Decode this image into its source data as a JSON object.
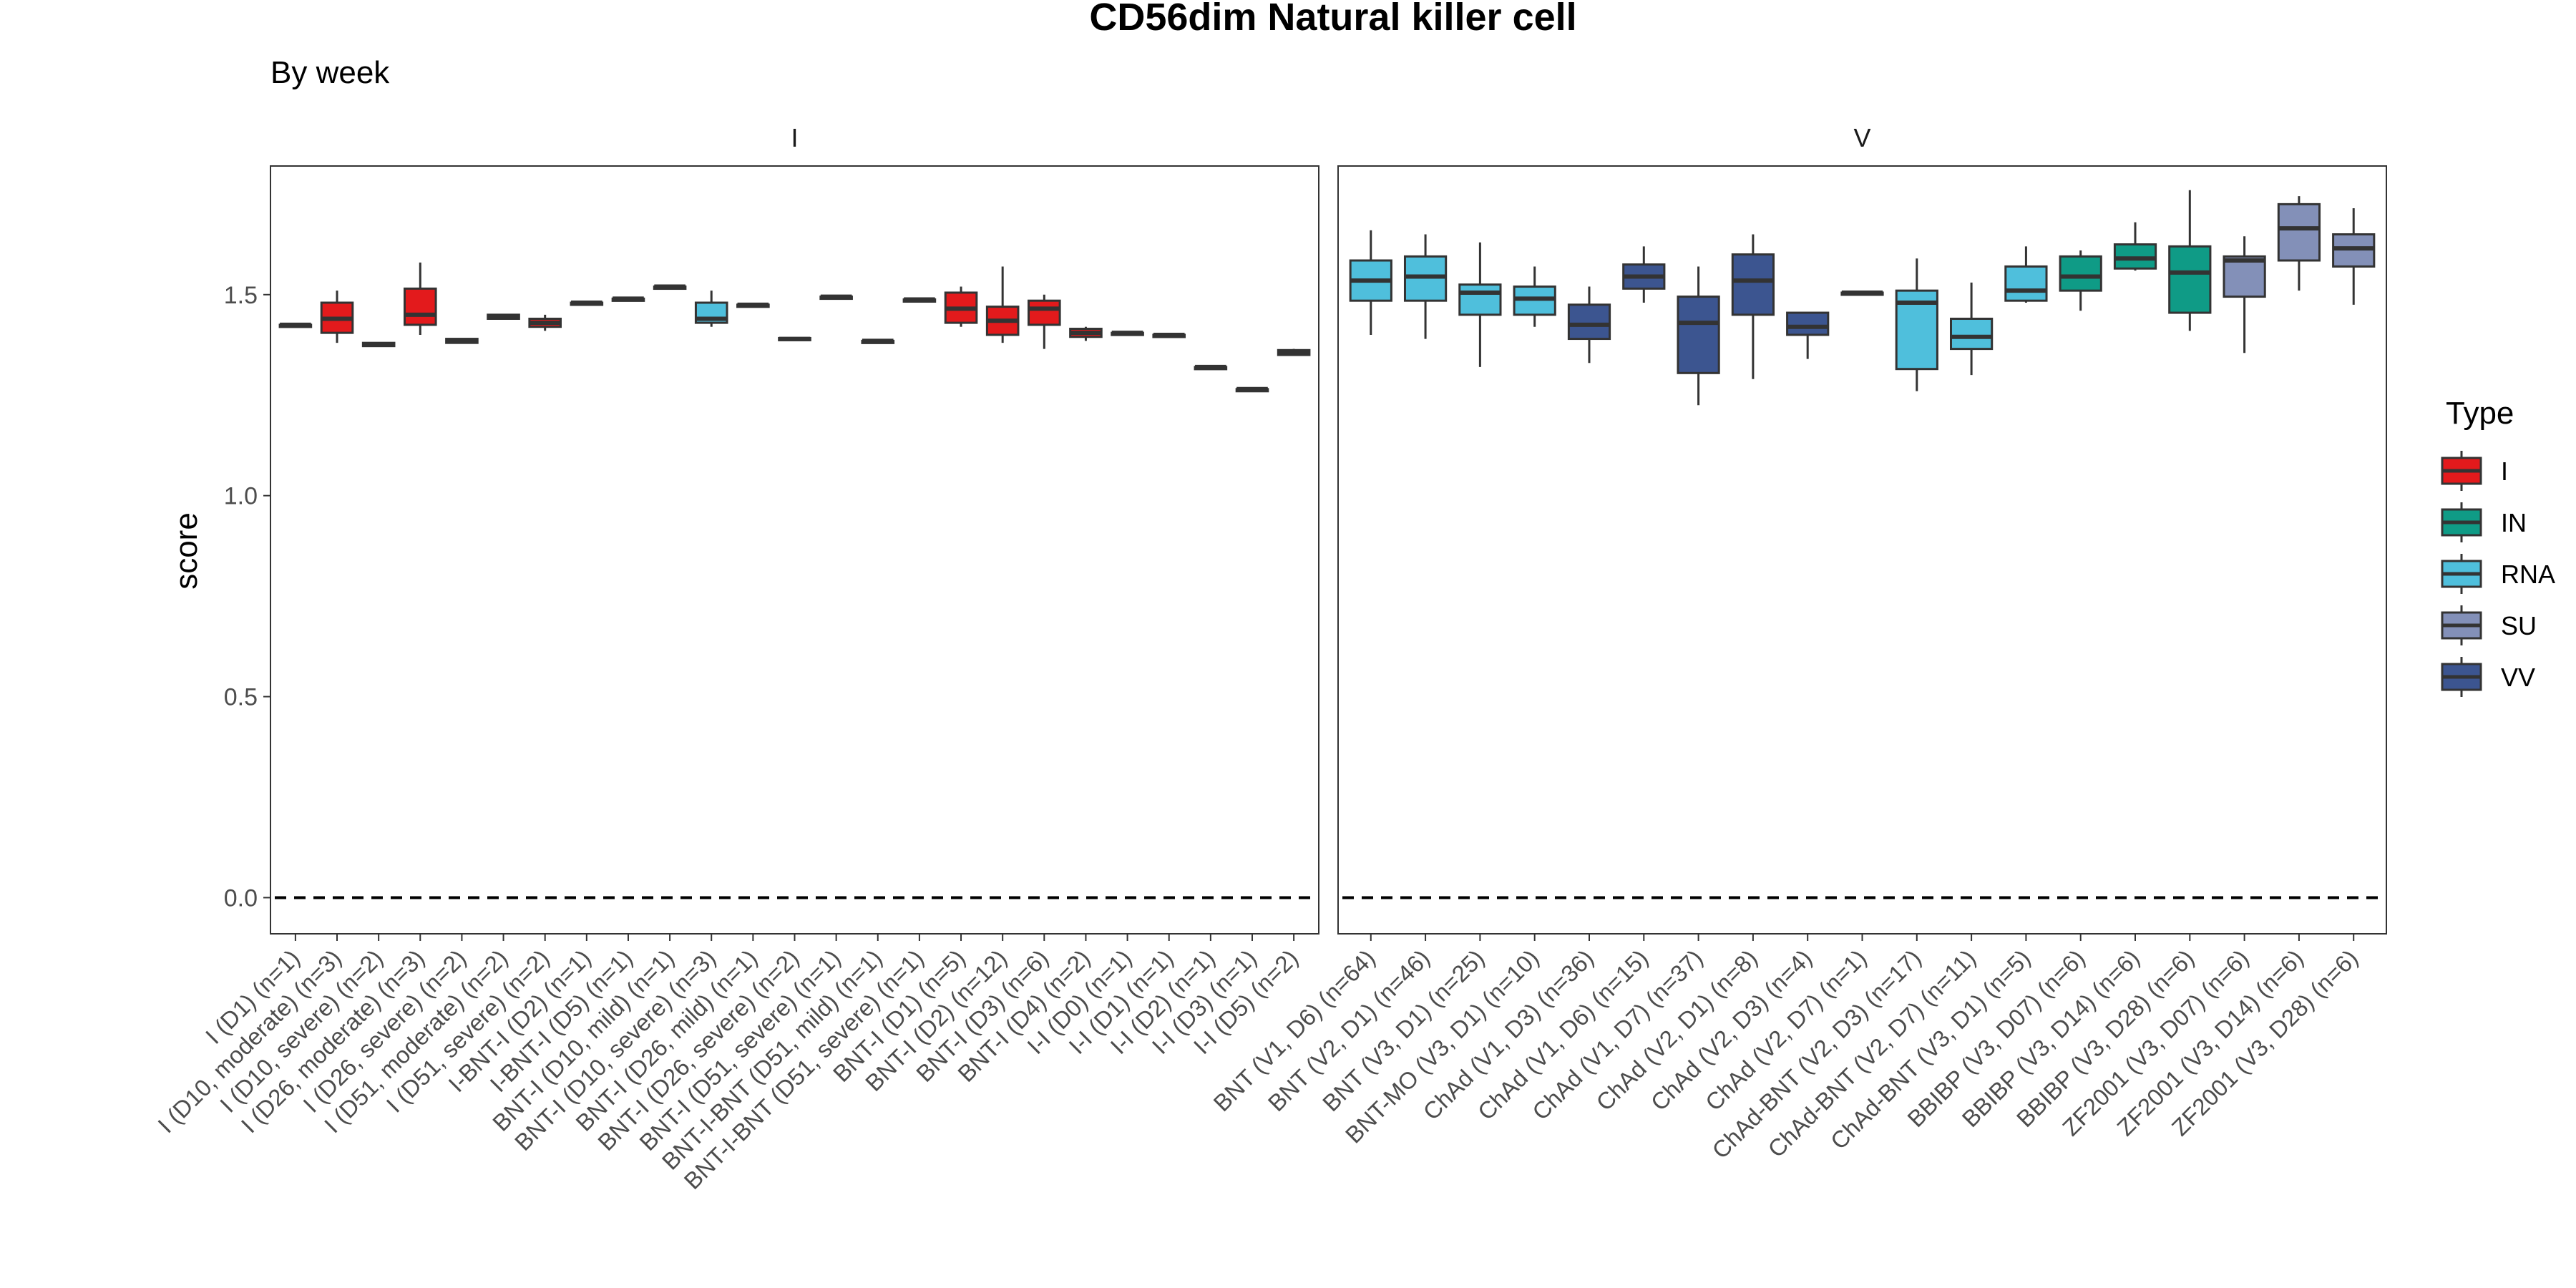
{
  "chart_data": {
    "type": "box",
    "title": "CD56dim Natural killer cell",
    "subtitle": "By week",
    "ylabel": "score",
    "xlabel": "",
    "ylim": [
      -0.09,
      1.82
    ],
    "yticks": [
      0.0,
      0.5,
      1.0,
      1.5
    ],
    "yticklabels": [
      "0.0",
      "0.5",
      "1.0",
      "1.5"
    ],
    "reference_line": 0.0,
    "legend": {
      "title": "Type",
      "position": "right",
      "items": [
        {
          "label": "I",
          "color": "#e31a1c"
        },
        {
          "label": "IN",
          "color": "#0f9b86"
        },
        {
          "label": "RNA",
          "color": "#4fbfdc"
        },
        {
          "label": "SU",
          "color": "#8390b8"
        },
        {
          "label": "VV",
          "color": "#3c5590"
        }
      ]
    },
    "colors": {
      "I": "#e31a1c",
      "IN": "#0f9b86",
      "RNA": "#4fbfdc",
      "SU": "#8390b8",
      "VV": "#3c5590"
    },
    "facets": [
      {
        "name": "I",
        "categories": [
          {
            "label": "I (D1) (n=1)",
            "type": "I",
            "q1": 1.425,
            "median": 1.425,
            "q3": 1.425,
            "min": 1.425,
            "max": 1.425
          },
          {
            "label": "I (D10, moderate) (n=3)",
            "type": "I",
            "q1": 1.405,
            "median": 1.44,
            "q3": 1.48,
            "min": 1.38,
            "max": 1.51
          },
          {
            "label": "I (D10, severe) (n=2)",
            "type": "I",
            "q1": 1.372,
            "median": 1.376,
            "q3": 1.38,
            "min": 1.372,
            "max": 1.38
          },
          {
            "label": "I (D26, moderate) (n=3)",
            "type": "I",
            "q1": 1.425,
            "median": 1.45,
            "q3": 1.515,
            "min": 1.4,
            "max": 1.58
          },
          {
            "label": "I (D26, severe) (n=2)",
            "type": "I",
            "q1": 1.38,
            "median": 1.385,
            "q3": 1.39,
            "min": 1.38,
            "max": 1.39
          },
          {
            "label": "I (D51, moderate) (n=2)",
            "type": "I",
            "q1": 1.44,
            "median": 1.445,
            "q3": 1.45,
            "min": 1.44,
            "max": 1.45
          },
          {
            "label": "I (D51, severe) (n=2)",
            "type": "I",
            "q1": 1.42,
            "median": 1.43,
            "q3": 1.44,
            "min": 1.41,
            "max": 1.45
          },
          {
            "label": "I-BNT-I (D2) (n=1)",
            "type": "I",
            "q1": 1.48,
            "median": 1.48,
            "q3": 1.48,
            "min": 1.48,
            "max": 1.48
          },
          {
            "label": "I-BNT-I (D5) (n=1)",
            "type": "I",
            "q1": 1.49,
            "median": 1.49,
            "q3": 1.49,
            "min": 1.49,
            "max": 1.49
          },
          {
            "label": "BNT-I (D10, mild) (n=1)",
            "type": "I",
            "q1": 1.52,
            "median": 1.52,
            "q3": 1.52,
            "min": 1.52,
            "max": 1.52
          },
          {
            "label": "BNT-I (D10, severe) (n=3)",
            "type": "RNA",
            "q1": 1.43,
            "median": 1.44,
            "q3": 1.48,
            "min": 1.42,
            "max": 1.51
          },
          {
            "label": "BNT-I (D26, mild) (n=1)",
            "type": "I",
            "q1": 1.475,
            "median": 1.475,
            "q3": 1.475,
            "min": 1.475,
            "max": 1.475
          },
          {
            "label": "BNT-I (D26, severe) (n=2)",
            "type": "I",
            "q1": 1.388,
            "median": 1.39,
            "q3": 1.392,
            "min": 1.388,
            "max": 1.392
          },
          {
            "label": "BNT-I (D51, severe) (n=1)",
            "type": "I",
            "q1": 1.495,
            "median": 1.495,
            "q3": 1.495,
            "min": 1.495,
            "max": 1.495
          },
          {
            "label": "BNT-I-BNT (D51, mild) (n=1)",
            "type": "I",
            "q1": 1.385,
            "median": 1.385,
            "q3": 1.385,
            "min": 1.385,
            "max": 1.385
          },
          {
            "label": "BNT-I-BNT (D51, severe) (n=1)",
            "type": "I",
            "q1": 1.488,
            "median": 1.488,
            "q3": 1.488,
            "min": 1.488,
            "max": 1.488
          },
          {
            "label": "BNT-I (D1) (n=5)",
            "type": "I",
            "q1": 1.43,
            "median": 1.465,
            "q3": 1.505,
            "min": 1.42,
            "max": 1.52
          },
          {
            "label": "BNT-I (D2) (n=12)",
            "type": "I",
            "q1": 1.4,
            "median": 1.435,
            "q3": 1.47,
            "min": 1.38,
            "max": 1.57
          },
          {
            "label": "BNT-I (D3) (n=6)",
            "type": "I",
            "q1": 1.425,
            "median": 1.465,
            "q3": 1.485,
            "min": 1.365,
            "max": 1.5
          },
          {
            "label": "BNT-I (D4) (n=2)",
            "type": "I",
            "q1": 1.395,
            "median": 1.405,
            "q3": 1.415,
            "min": 1.385,
            "max": 1.42
          },
          {
            "label": "I-I (D0) (n=1)",
            "type": "I",
            "q1": 1.405,
            "median": 1.405,
            "q3": 1.405,
            "min": 1.405,
            "max": 1.405
          },
          {
            "label": "I-I (D1) (n=1)",
            "type": "I",
            "q1": 1.4,
            "median": 1.4,
            "q3": 1.4,
            "min": 1.4,
            "max": 1.4
          },
          {
            "label": "I-I (D2) (n=1)",
            "type": "I",
            "q1": 1.32,
            "median": 1.32,
            "q3": 1.32,
            "min": 1.32,
            "max": 1.32
          },
          {
            "label": "I-I (D3) (n=1)",
            "type": "I",
            "q1": 1.265,
            "median": 1.265,
            "q3": 1.265,
            "min": 1.265,
            "max": 1.265
          },
          {
            "label": "I-I (D5) (n=2)",
            "type": "I",
            "q1": 1.35,
            "median": 1.355,
            "q3": 1.362,
            "min": 1.35,
            "max": 1.365
          }
        ]
      },
      {
        "name": "V",
        "categories": [
          {
            "label": "BNT (V1, D6) (n=64)",
            "type": "RNA",
            "q1": 1.485,
            "median": 1.535,
            "q3": 1.585,
            "min": 1.4,
            "max": 1.66
          },
          {
            "label": "BNT (V2, D1) (n=46)",
            "type": "RNA",
            "q1": 1.485,
            "median": 1.545,
            "q3": 1.595,
            "min": 1.39,
            "max": 1.65
          },
          {
            "label": "BNT (V3, D1) (n=25)",
            "type": "RNA",
            "q1": 1.45,
            "median": 1.505,
            "q3": 1.525,
            "min": 1.32,
            "max": 1.63
          },
          {
            "label": "BNT-MO (V3, D1) (n=10)",
            "type": "RNA",
            "q1": 1.45,
            "median": 1.49,
            "q3": 1.52,
            "min": 1.42,
            "max": 1.57
          },
          {
            "label": "ChAd (V1, D3) (n=36)",
            "type": "VV",
            "q1": 1.39,
            "median": 1.425,
            "q3": 1.475,
            "min": 1.33,
            "max": 1.52
          },
          {
            "label": "ChAd (V1, D6) (n=15)",
            "type": "VV",
            "q1": 1.515,
            "median": 1.545,
            "q3": 1.575,
            "min": 1.48,
            "max": 1.62
          },
          {
            "label": "ChAd (V1, D7) (n=37)",
            "type": "VV",
            "q1": 1.305,
            "median": 1.43,
            "q3": 1.495,
            "min": 1.225,
            "max": 1.57
          },
          {
            "label": "ChAd (V2, D1) (n=8)",
            "type": "VV",
            "q1": 1.45,
            "median": 1.535,
            "q3": 1.6,
            "min": 1.29,
            "max": 1.65
          },
          {
            "label": "ChAd (V2, D3) (n=4)",
            "type": "VV",
            "q1": 1.4,
            "median": 1.42,
            "q3": 1.455,
            "min": 1.34,
            "max": 1.455
          },
          {
            "label": "ChAd (V2, D7) (n=1)",
            "type": "VV",
            "q1": 1.505,
            "median": 1.505,
            "q3": 1.505,
            "min": 1.505,
            "max": 1.505
          },
          {
            "label": "ChAd-BNT (V2, D3) (n=17)",
            "type": "RNA",
            "q1": 1.315,
            "median": 1.48,
            "q3": 1.51,
            "min": 1.26,
            "max": 1.59
          },
          {
            "label": "ChAd-BNT (V2, D7) (n=11)",
            "type": "RNA",
            "q1": 1.365,
            "median": 1.395,
            "q3": 1.44,
            "min": 1.3,
            "max": 1.53
          },
          {
            "label": "ChAd-BNT (V3, D1) (n=5)",
            "type": "RNA",
            "q1": 1.485,
            "median": 1.51,
            "q3": 1.57,
            "min": 1.48,
            "max": 1.62
          },
          {
            "label": "BBIBP (V3, D07) (n=6)",
            "type": "IN",
            "q1": 1.51,
            "median": 1.545,
            "q3": 1.595,
            "min": 1.46,
            "max": 1.61
          },
          {
            "label": "BBIBP (V3, D14) (n=6)",
            "type": "IN",
            "q1": 1.565,
            "median": 1.59,
            "q3": 1.625,
            "min": 1.56,
            "max": 1.68
          },
          {
            "label": "BBIBP (V3, D28) (n=6)",
            "type": "IN",
            "q1": 1.455,
            "median": 1.555,
            "q3": 1.62,
            "min": 1.41,
            "max": 1.76
          },
          {
            "label": "ZF2001 (V3, D07) (n=6)",
            "type": "SU",
            "q1": 1.495,
            "median": 1.585,
            "q3": 1.595,
            "min": 1.355,
            "max": 1.645
          },
          {
            "label": "ZF2001 (V3, D14) (n=6)",
            "type": "SU",
            "q1": 1.585,
            "median": 1.665,
            "q3": 1.725,
            "min": 1.51,
            "max": 1.745
          },
          {
            "label": "ZF2001 (V3, D28) (n=6)",
            "type": "SU",
            "q1": 1.57,
            "median": 1.615,
            "q3": 1.65,
            "min": 1.475,
            "max": 1.715
          }
        ]
      }
    ]
  }
}
